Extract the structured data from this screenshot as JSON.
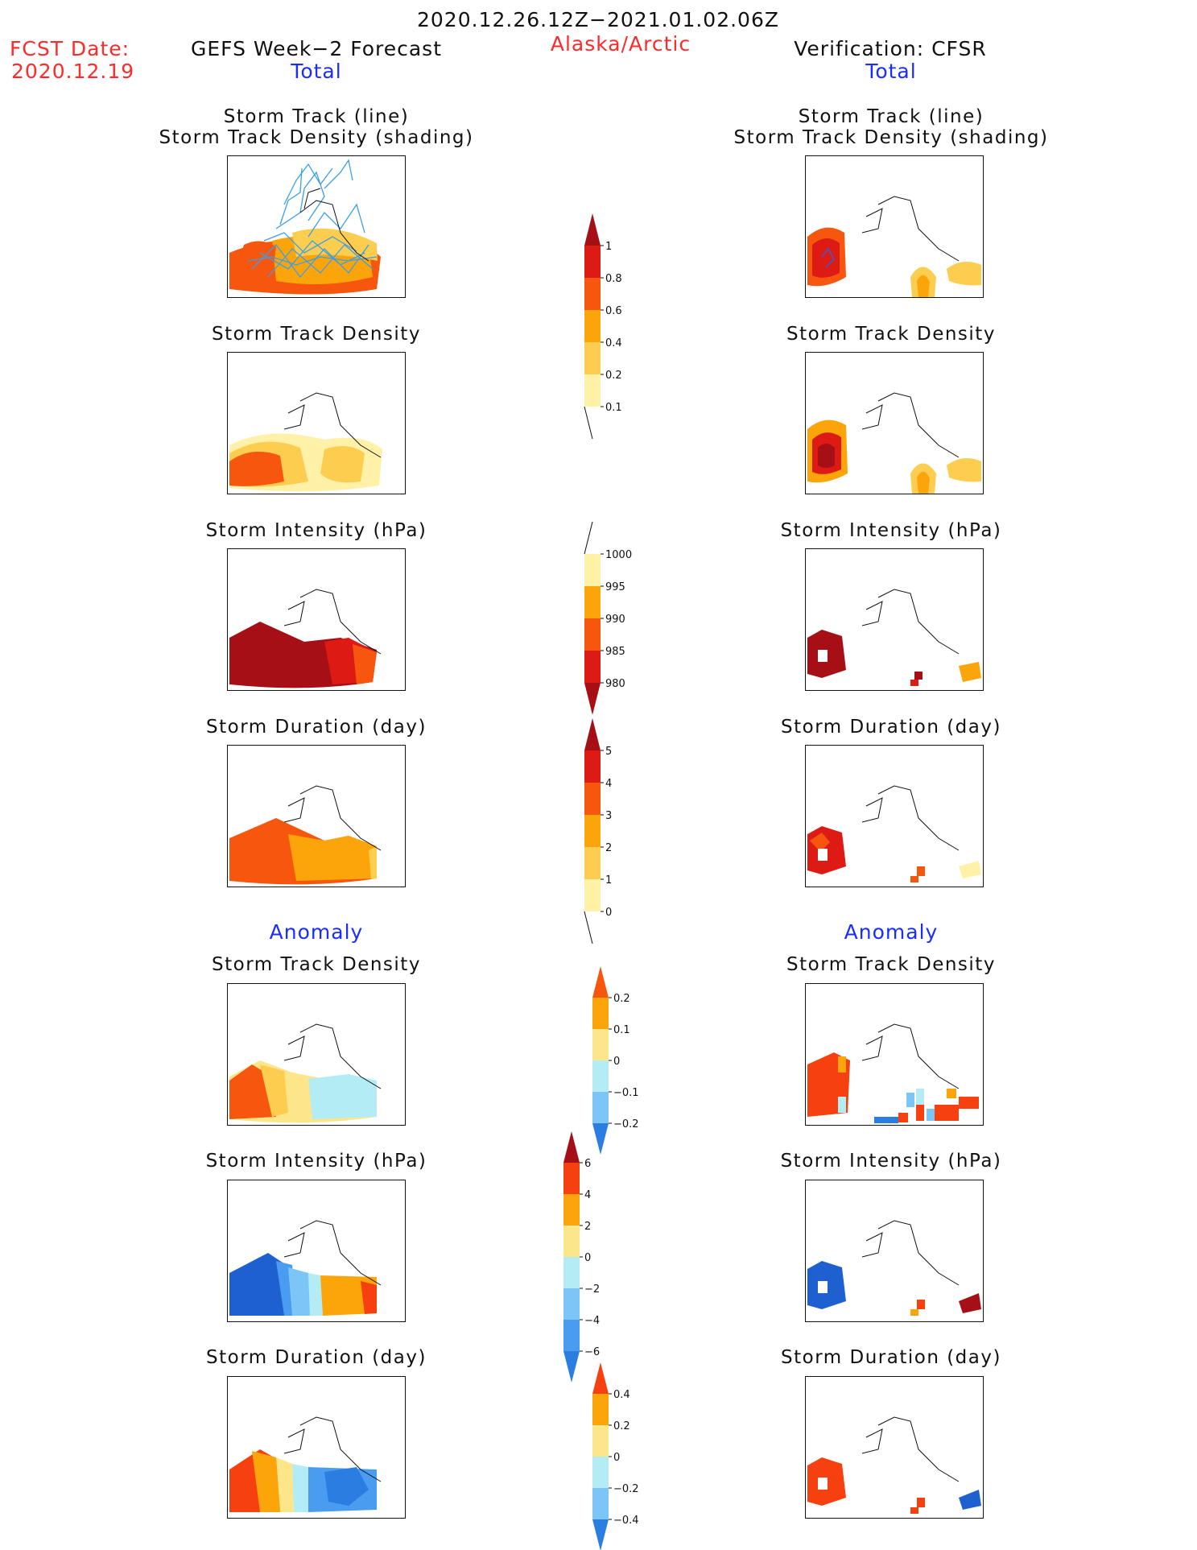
{
  "header": {
    "period": "2020.12.26.12Z−2021.01.02.06Z",
    "fcst_label": "FCST Date:",
    "fcst_date": "2020.12.19",
    "forecast_title": "GEFS Week−2 Forecast",
    "region": "Alaska/Arctic",
    "verification_title": "Verification: CFSR",
    "left_section": "Total",
    "right_section": "Total"
  },
  "anomaly": {
    "left": "Anomaly",
    "right": "Anomaly"
  },
  "panels": {
    "p1": [
      "Storm Track (line)",
      "Storm Track Density (shading)"
    ],
    "p2": "Storm Track Density",
    "p3": "Storm Intensity (hPa)",
    "p4": "Storm Duration (day)",
    "p5": "Storm Track Density",
    "p6": "Storm Intensity (hPa)",
    "p7": "Storm Duration (day)"
  },
  "colorbars": {
    "density": {
      "ticks": [
        "1",
        "0.8",
        "0.6",
        "0.4",
        "0.2",
        "0.1"
      ],
      "colors": [
        "#a50f15",
        "#de1a15",
        "#f7560f",
        "#fca50a",
        "#fdcd4f",
        "#fff2a8",
        "#ffffff"
      ]
    },
    "intensity": {
      "ticks": [
        "1000",
        "995",
        "990",
        "985",
        "980"
      ],
      "colors": [
        "#ffffff",
        "#fff2a8",
        "#fca50a",
        "#f7560f",
        "#de1a15",
        "#a50f15"
      ]
    },
    "duration": {
      "ticks": [
        "5",
        "4",
        "3",
        "2",
        "1",
        "0"
      ],
      "colors": [
        "#a50f15",
        "#de1a15",
        "#f7560f",
        "#fca50a",
        "#fdcd4f",
        "#fff2a8",
        "#ffffff"
      ]
    },
    "anom_density": {
      "ticks": [
        "0.2",
        "0.1",
        "0",
        "−0.1",
        "−0.2"
      ],
      "colors": [
        "#f7560f",
        "#fca50a",
        "#fde68a",
        "#b3ecf5",
        "#7cc6f7",
        "#2a7de1"
      ]
    },
    "anom_intensity": {
      "ticks": [
        "6",
        "4",
        "2",
        "0",
        "−2",
        "−4",
        "−6"
      ],
      "colors": [
        "#a50f15",
        "#f7400f",
        "#fca50a",
        "#fde68a",
        "#b3ecf5",
        "#7cc6f7",
        "#4a9cf0",
        "#2a7de1"
      ]
    },
    "anom_duration": {
      "ticks": [
        "0.4",
        "0.2",
        "0",
        "−0.2",
        "−0.4"
      ],
      "colors": [
        "#f7400f",
        "#fca50a",
        "#fde68a",
        "#b3ecf5",
        "#7cc6f7",
        "#2a7de1"
      ]
    }
  }
}
